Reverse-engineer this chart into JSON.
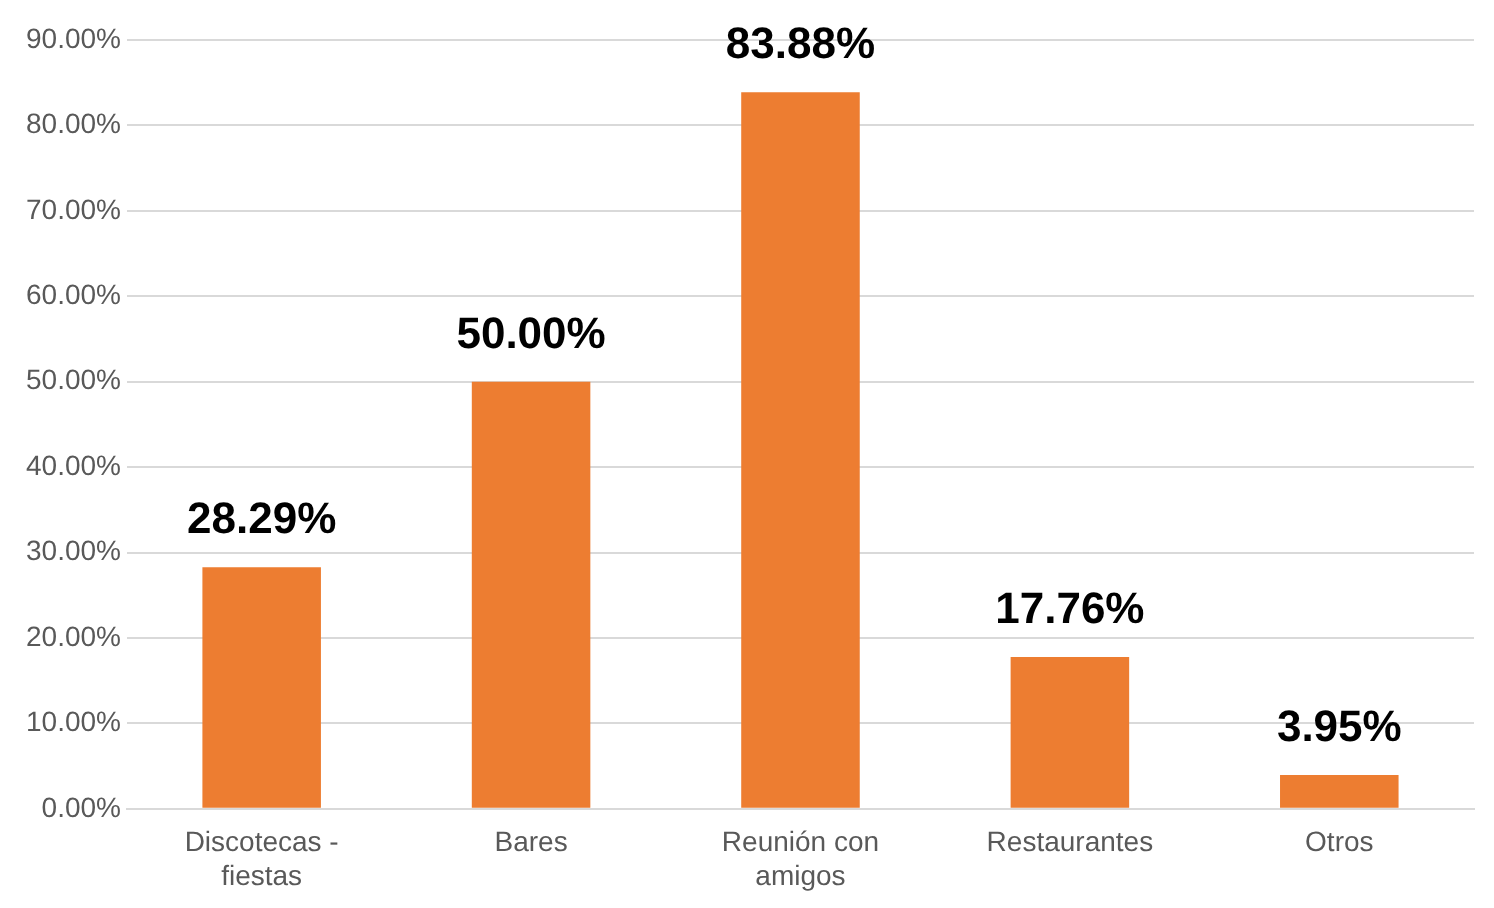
{
  "chart_data": {
    "type": "bar",
    "categories": [
      "Discotecas - fiestas",
      "Bares",
      "Reunión con amigos",
      "Restaurantes",
      "Otros"
    ],
    "values": [
      28.29,
      50.0,
      83.88,
      17.76,
      3.95
    ],
    "value_labels": [
      "28.29%",
      "50.00%",
      "83.88%",
      "17.76%",
      "3.95%"
    ],
    "color": "#ed7d31",
    "ylim": [
      0,
      90
    ],
    "yticks": [
      {
        "value": 0,
        "label": "0.00%"
      },
      {
        "value": 10,
        "label": "10.00%"
      },
      {
        "value": 20,
        "label": "20.00%"
      },
      {
        "value": 30,
        "label": "30.00%"
      },
      {
        "value": 40,
        "label": "40.00%"
      },
      {
        "value": 50,
        "label": "50.00%"
      },
      {
        "value": 60,
        "label": "60.00%"
      },
      {
        "value": 70,
        "label": "70.00%"
      },
      {
        "value": 80,
        "label": "80.00%"
      },
      {
        "value": 90,
        "label": "90.00%"
      }
    ],
    "grid": "y",
    "legend": false
  }
}
